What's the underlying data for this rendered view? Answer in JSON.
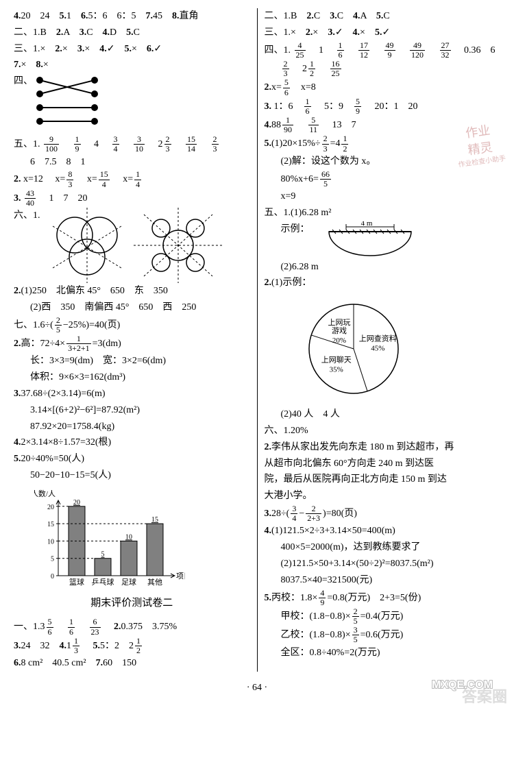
{
  "left": {
    "line1": [
      "4.",
      "20　24",
      "5.",
      "1",
      "6.",
      "5：6　6：5",
      "7.",
      "45",
      "8.",
      "直角"
    ],
    "line2": [
      "二、1.",
      "B",
      "2.",
      "A",
      "3.",
      "C",
      "4.",
      "D",
      "5.",
      "C"
    ],
    "line3": [
      "三、1.",
      "×",
      "2.",
      "×",
      "3.",
      "×",
      "4.",
      "✓",
      "5.",
      "×",
      "6.",
      "✓"
    ],
    "line3b": [
      "7.",
      "×",
      "8.",
      "×"
    ],
    "line4_label": "四、",
    "line5_label": "五、1.",
    "line5_vals": [
      [
        "9",
        "100"
      ],
      [
        "1",
        "9"
      ],
      "4",
      [
        "3",
        "4"
      ],
      [
        "3",
        "10"
      ],
      "2",
      [
        "2",
        "3"
      ],
      [
        "15",
        "14"
      ],
      [
        "2",
        "3"
      ]
    ],
    "line5b_vals": [
      "6",
      "7.5",
      "8",
      "1"
    ],
    "line6": "2.",
    "line6_eq": [
      "x=12",
      "x=",
      "8",
      "3",
      "x=",
      "15",
      "4",
      "x=",
      "1",
      "4"
    ],
    "line7": "3.",
    "line7_vals": [
      [
        "43",
        "40"
      ],
      "1",
      "7",
      "20"
    ],
    "line8_label": "六、1.",
    "line9": [
      "2.",
      "(1)250　北偏东 45°　650　东　350"
    ],
    "line9b": "(2)西　350　南偏西 45°　650　西　250",
    "line10": "七、1.",
    "line10_eq": "6÷(　−25%)=40(页)",
    "line10_frac": [
      "2",
      "5"
    ],
    "line11": "2.",
    "line11a": "高：72÷4×　　　=3(dm)",
    "line11a_frac": [
      "1",
      "3+2+1"
    ],
    "line11b": "长：3×3=9(dm)　宽：3×2=6(dm)",
    "line11c": "体积：9×6×3=162(dm³)",
    "line12": "3.",
    "line12a": "37.68÷(2×3.14)=6(m)",
    "line12b": "3.14×[(6+2)²−6²]=87.92(m²)",
    "line12c": "87.92×20=1758.4(kg)",
    "line13": "4.",
    "line13a": "2×3.14×8÷1.57=32(根)",
    "line14": "5.",
    "line14a": "20÷40%=50(人)",
    "line14b": "50−20−10−15=5(人)",
    "chart": {
      "categories": [
        "篮球",
        "乒乓球",
        "足球",
        "其他"
      ],
      "values": [
        20,
        5,
        10,
        15
      ],
      "ymax": 20,
      "ytick_step": 5,
      "ylabel": "人数/人",
      "xlabel": "项目",
      "bar_color": "#808080",
      "value_labels": [
        "20",
        "5",
        "10",
        "15"
      ]
    },
    "heading2": "期末评价测试卷二",
    "bline1": [
      "一、1.",
      "3",
      [
        "5",
        "6"
      ],
      [
        "1",
        "6"
      ],
      [
        "6",
        "23"
      ],
      "2.",
      "0.375",
      "3.75%"
    ],
    "bline2": [
      "3.",
      "24　32",
      "4.",
      "1",
      [
        "1",
        "3"
      ],
      "5.",
      "5：2　2",
      [
        "1",
        "2"
      ]
    ],
    "bline3": [
      "6.",
      "8 cm²　40.5 cm²",
      "7.",
      "60　150"
    ]
  },
  "right": {
    "line1": [
      "二、1.",
      "B",
      "2.",
      "C",
      "3.",
      "C",
      "4.",
      "A",
      "5.",
      "C"
    ],
    "line2": [
      "三、1.",
      "×",
      "2.",
      "×",
      "3.",
      "✓",
      "4.",
      "×",
      "5.",
      "✓"
    ],
    "line3_label": "四、1.",
    "line3_vals": [
      [
        "4",
        "25"
      ],
      "1",
      [
        "1",
        "6"
      ],
      [
        "17",
        "12"
      ],
      [
        "49",
        "9"
      ],
      [
        "49",
        "120"
      ],
      [
        "27",
        "32"
      ],
      "0.36",
      "6"
    ],
    "line3b_vals": [
      [
        "2",
        "3"
      ],
      "2",
      [
        "1",
        "2"
      ],
      [
        "16",
        "25"
      ]
    ],
    "line4": "2.",
    "line4_eq": [
      "x=",
      [
        "5",
        "6"
      ],
      "　x=8"
    ],
    "line5": "3.",
    "line5_vals": [
      "1：6",
      [
        "1",
        "6"
      ],
      "5：9",
      [
        "5",
        "9"
      ],
      "20：1",
      "20"
    ],
    "line6": "4.",
    "line6_vals": [
      "88",
      [
        "1",
        "90"
      ],
      [
        "5",
        "11"
      ],
      "13",
      "7"
    ],
    "line7": "5.",
    "line7a": "(1)20×15%÷　=4",
    "line7a_frac": [
      "2",
      "3"
    ],
    "line7a_end": [
      "1",
      "2"
    ],
    "line7b": "(2)解：设这个数为 x。",
    "line7c_l": "80%x+6=",
    "line7c_frac": [
      "66",
      "5"
    ],
    "line7d": "x=9",
    "line8": "五、1.",
    "line8a": "(1)6.28 m²",
    "line8b_label": "示例：",
    "line8b_dim": "4 m",
    "line8c": "(2)6.28 m",
    "line9": "2.",
    "line9a": "(1)示例：",
    "pie": {
      "slices": [
        {
          "label": "上网查资料",
          "pct": "45%",
          "angle_start": -90,
          "angle_span": 162,
          "mid": -9
        },
        {
          "label": "上网聊天",
          "pct": "35%",
          "angle_start": 72,
          "angle_span": 126,
          "mid": 135
        },
        {
          "label": "上网玩\n游戏",
          "pct": "20%",
          "angle_start": 198,
          "angle_span": 72,
          "mid": 234
        }
      ]
    },
    "line9c": "(2)40 人　4 人",
    "line10": "六、1.",
    "line10a": "20%",
    "line11": "2.",
    "line11a": "李伟从家出发先向东走 180 m 到达超市，再\n从超市向北偏东 60°方向走 240 m 到达医\n院，最后从医院再向正北方向走 150 m 到达\n大港小学。",
    "line12": "3.",
    "line12a_l": "28÷(　−　　)=80(页)",
    "line12a_f1": [
      "3",
      "4"
    ],
    "line12a_f2": [
      "2",
      "2+3"
    ],
    "line13": "4.",
    "line13a": "(1)121.5×2÷3+3.14×50=400(m)",
    "line13b": "400×5=2000(m)，达到教练要求了",
    "line13c": "(2)121.5×50+3.14×(50÷2)²=8037.5(m²)",
    "line13d": "8037.5×40=321500(元)",
    "line14": "5.",
    "line14a_l": "丙校：1.8×　=0.8(万元)　2+3=5(份)",
    "line14a_f": [
      "4",
      "9"
    ],
    "line14b_l": "甲校：(1.8−0.8)×　=0.4(万元)",
    "line14b_f": [
      "2",
      "5"
    ],
    "line14c_l": "乙校：(1.8−0.8)×　=0.6(万元)",
    "line14c_f": [
      "3",
      "5"
    ],
    "line14d": "全区：0.8÷40%=2(万元)"
  },
  "page_num": "· 64 ·",
  "stamp": [
    "作业",
    "精灵",
    "作业检查小助手"
  ],
  "wm_br": "答案圈",
  "wm_mxqe": "MXQE.COM"
}
